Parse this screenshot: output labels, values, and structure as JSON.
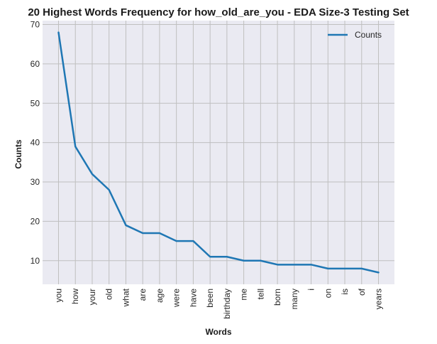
{
  "chart_data": {
    "type": "line",
    "title": "20 Highest Words Frequency for how_old_are_you - EDA Size-3 Testing Set",
    "xlabel": "Words",
    "ylabel": "Counts",
    "categories": [
      "you",
      "how",
      "your",
      "old",
      "what",
      "are",
      "age",
      "were",
      "have",
      "been",
      "birthday",
      "me",
      "tell",
      "born",
      "many",
      "i",
      "on",
      "is",
      "of",
      "years"
    ],
    "series": [
      {
        "name": "Counts",
        "values": [
          68,
          39,
          32,
          28,
          19,
          17,
          17,
          15,
          15,
          11,
          11,
          10,
          10,
          9,
          9,
          9,
          8,
          8,
          8,
          7
        ],
        "color": "#1f77b4"
      }
    ],
    "yticks": [
      10,
      20,
      30,
      40,
      50,
      60,
      70
    ],
    "ylim": [
      4,
      71
    ],
    "grid": true,
    "legend_position": "top-right",
    "background_color": "#eaeaf2",
    "grid_color": "#bfbfbf"
  }
}
